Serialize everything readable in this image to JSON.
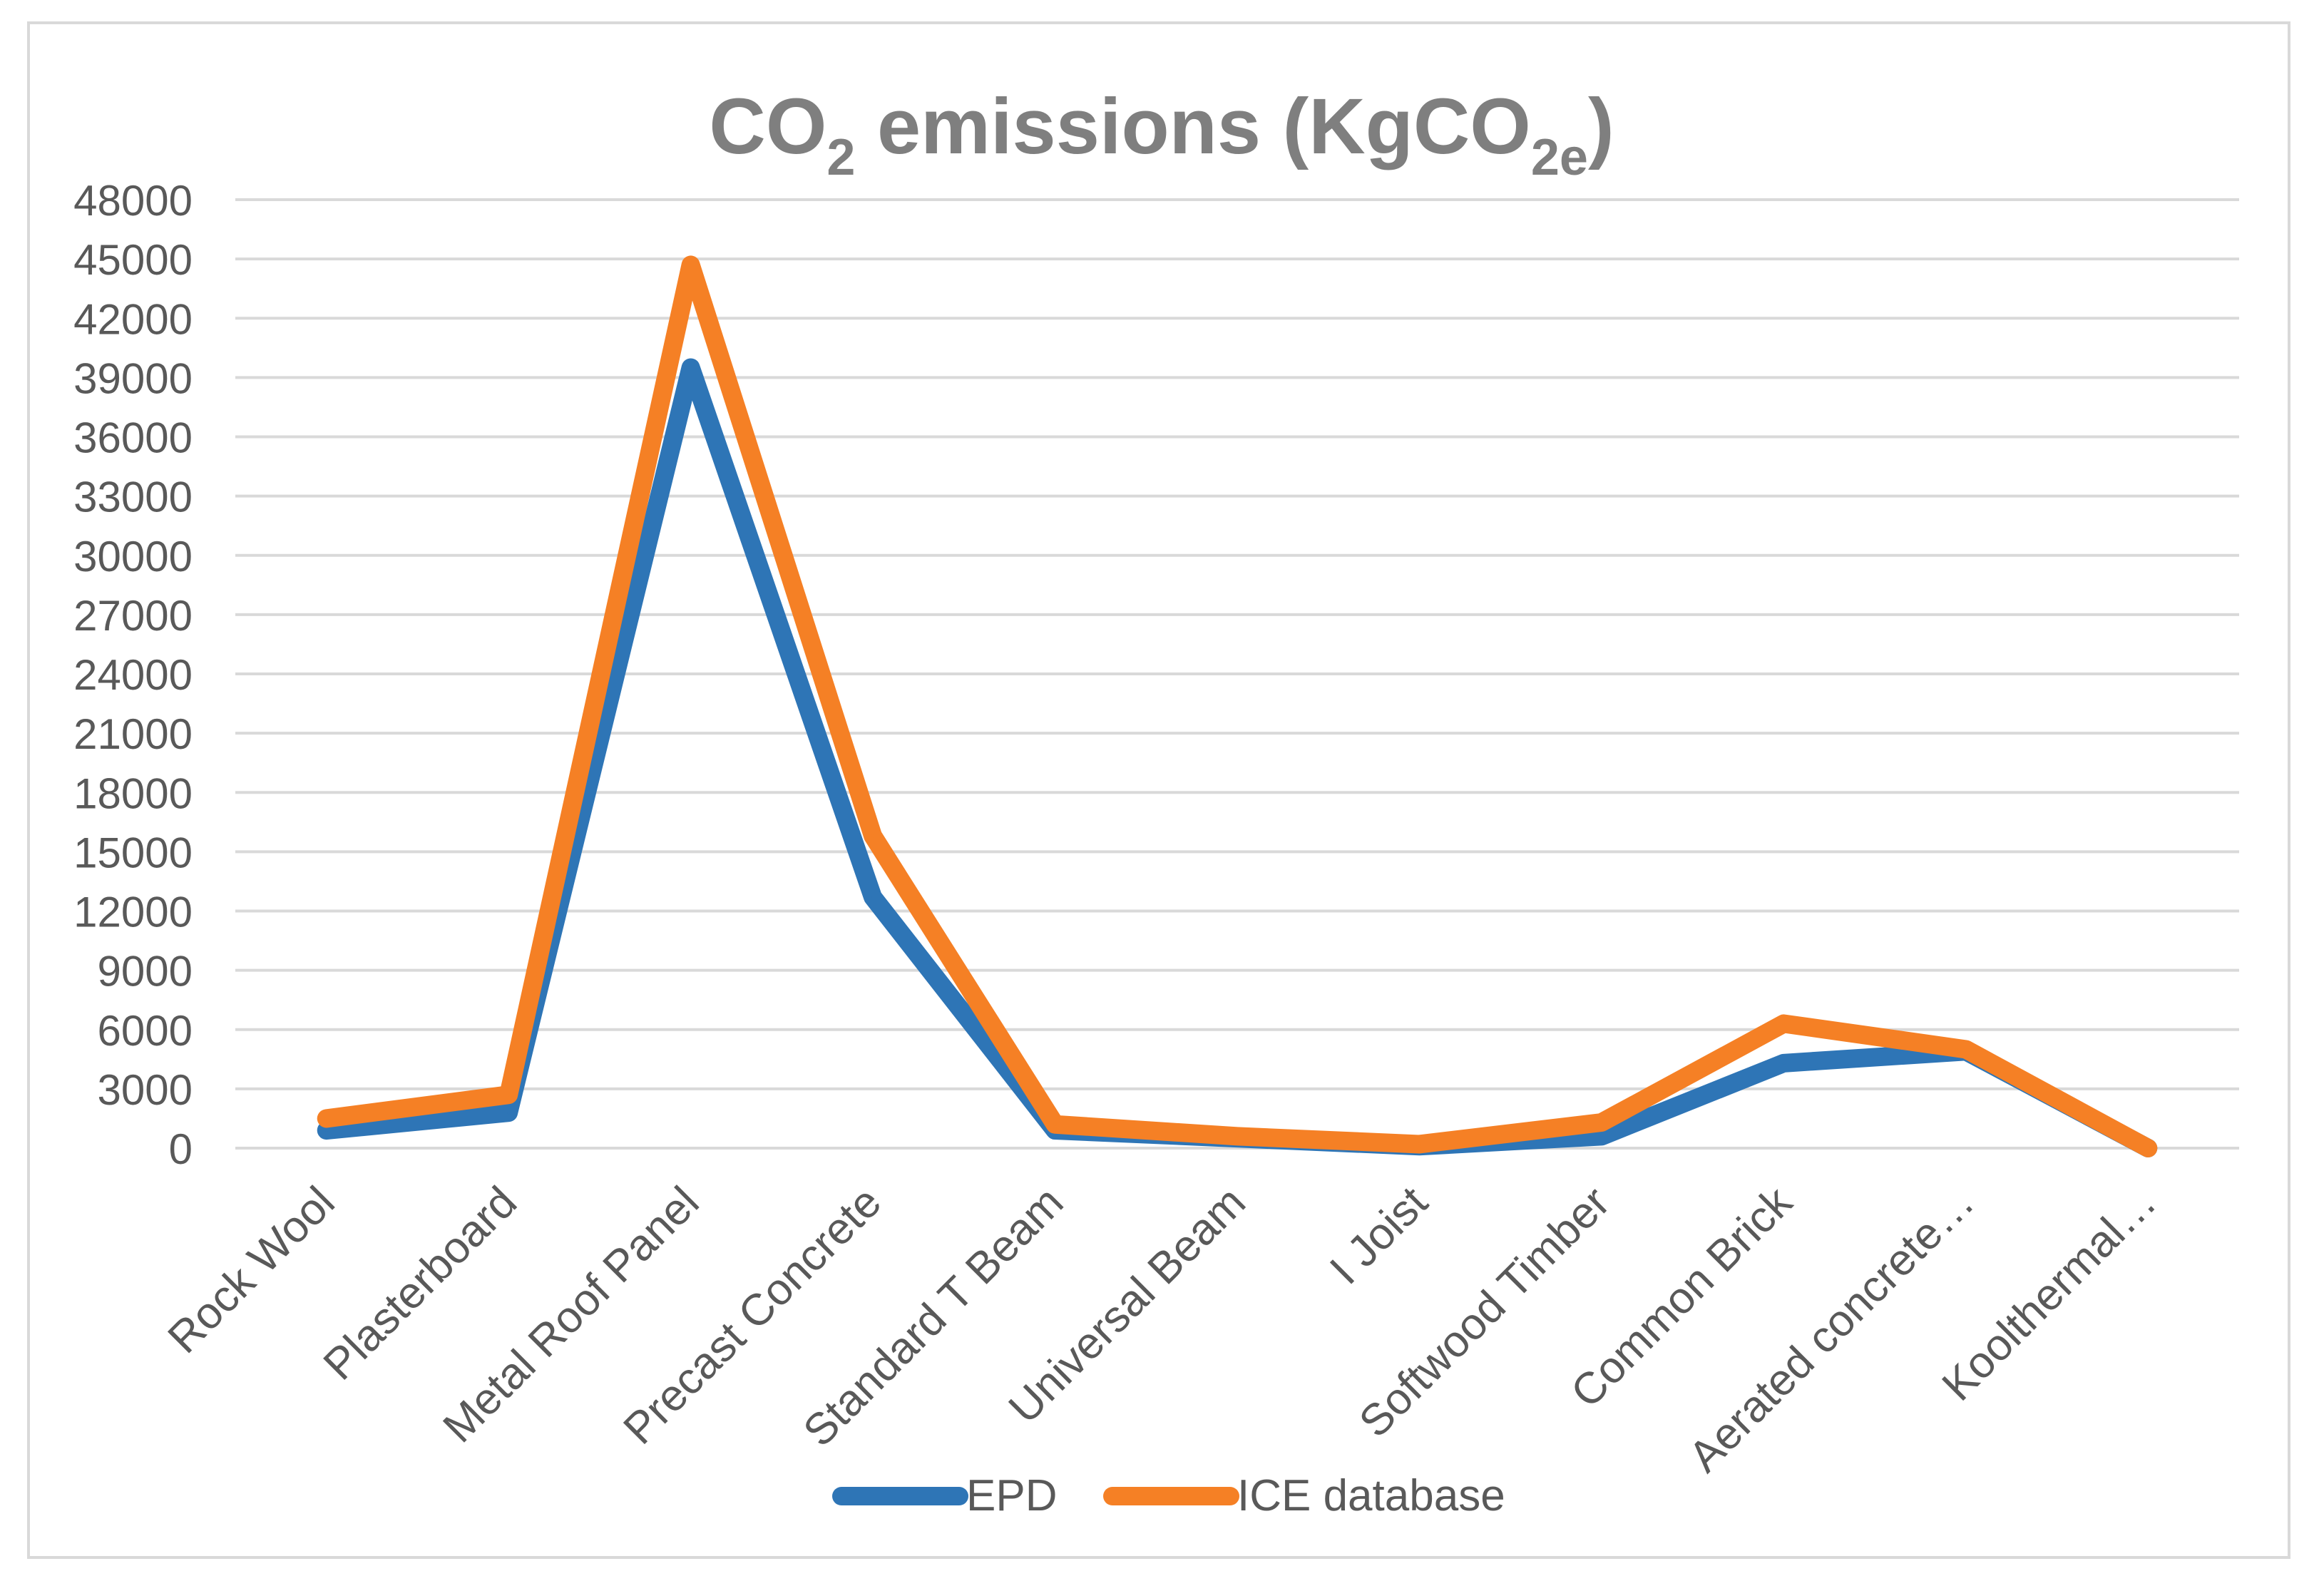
{
  "chart_data": {
    "type": "line",
    "title": "CO2 emissions (KgCO2e)",
    "title_parts": {
      "main": "CO",
      "sub1": "2",
      "mid": " emissions (KgCO",
      "sub2": "2e",
      "end": ")"
    },
    "categories": [
      "Rock Wool",
      "Plasterboard",
      "Metal Roof Panel",
      "Precast Concrete",
      "Standard T Beam",
      "Universal Beam",
      "I Joist",
      "Softwood Timber",
      "Common Brick",
      "Aerated concrete…",
      "Koolthermal…"
    ],
    "series": [
      {
        "name": "EPD",
        "color": "#2e75b6",
        "values": [
          900,
          1800,
          39500,
          12700,
          900,
          500,
          100,
          600,
          4300,
          4900,
          0
        ]
      },
      {
        "name": "ICE database",
        "color": "#f58025",
        "values": [
          1500,
          2700,
          44700,
          15800,
          1200,
          600,
          200,
          1300,
          6300,
          5000,
          0
        ]
      }
    ],
    "ylim": [
      0,
      48000
    ],
    "yticks": [
      0,
      3000,
      6000,
      9000,
      12000,
      15000,
      18000,
      21000,
      24000,
      27000,
      30000,
      33000,
      36000,
      39000,
      42000,
      45000,
      48000
    ],
    "grid": true,
    "legend": "bottom-center",
    "xlabel": "",
    "ylabel": ""
  }
}
